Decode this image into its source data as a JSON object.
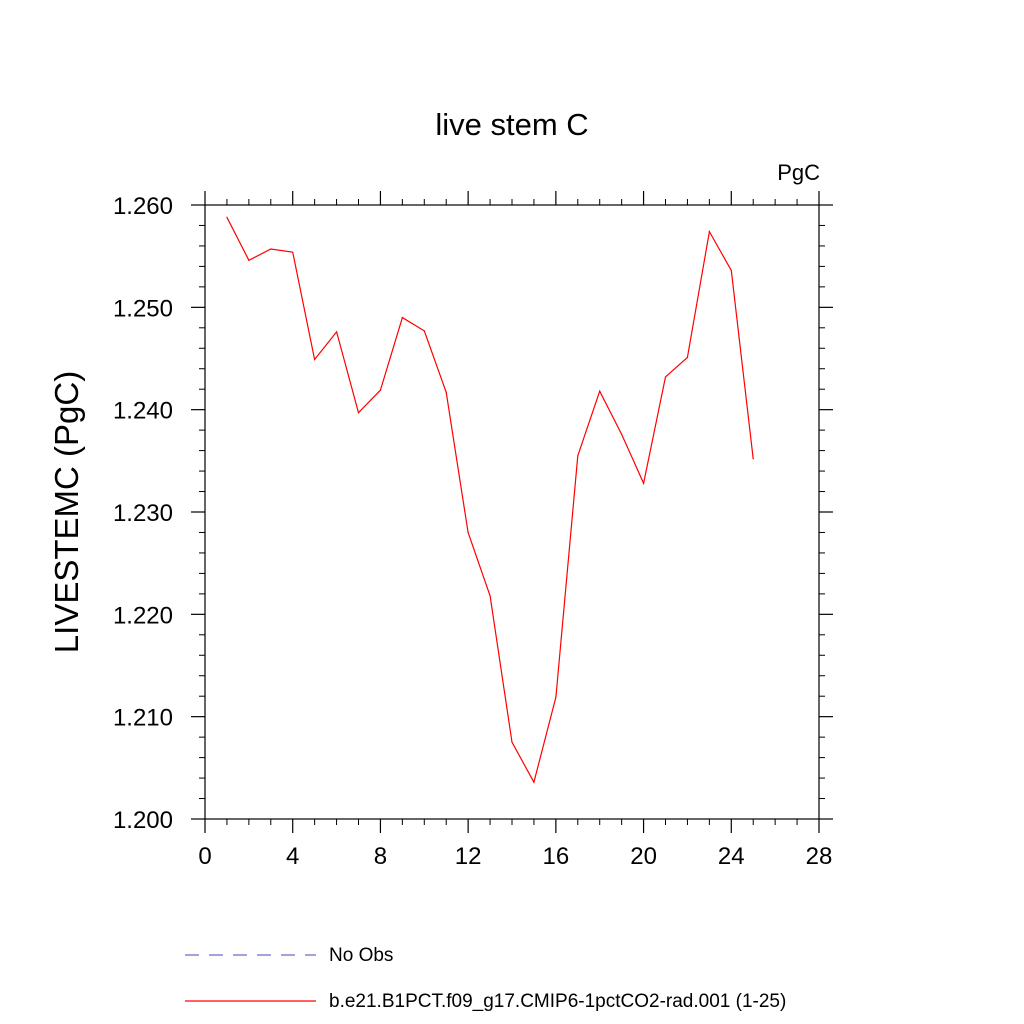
{
  "chart_data": {
    "type": "line",
    "title": "live stem C",
    "units_label": "PgC",
    "ylabel": "LIVESTEMC  (PgC)",
    "xlabel": "",
    "xlim": [
      0,
      28
    ],
    "ylim": [
      1.2,
      1.26
    ],
    "x_ticks": [
      0,
      4,
      8,
      12,
      16,
      20,
      24,
      28
    ],
    "x_tick_labels": [
      "0",
      "4",
      "8",
      "12",
      "16",
      "20",
      "24",
      "28"
    ],
    "y_ticks": [
      1.2,
      1.21,
      1.22,
      1.23,
      1.24,
      1.25,
      1.26
    ],
    "y_tick_labels": [
      "1.200",
      "1.210",
      "1.220",
      "1.230",
      "1.240",
      "1.250",
      "1.260"
    ],
    "grid": false,
    "legend_position": "bottom",
    "series": [
      {
        "name": "b.e21.B1PCT.f09_g17.CMIP6-1pctCO2-rad.001 (1-25)",
        "color": "#ff0000",
        "style": "solid",
        "x": [
          1,
          2,
          3,
          4,
          5,
          6,
          7,
          8,
          9,
          10,
          11,
          12,
          13,
          14,
          15,
          16,
          17,
          18,
          19,
          20,
          21,
          22,
          23,
          24,
          25
        ],
        "y": [
          1.2588,
          1.2546,
          1.2557,
          1.2554,
          1.2449,
          1.2476,
          1.2397,
          1.2419,
          1.249,
          1.2477,
          1.2417,
          1.228,
          1.2218,
          1.2075,
          1.2036,
          1.2119,
          1.2355,
          1.2418,
          1.2376,
          1.2328,
          1.2432,
          1.2451,
          1.2574,
          1.2536,
          1.2352
        ]
      },
      {
        "name": "No Obs",
        "color": "#6a6ac8",
        "style": "dashed",
        "x": [],
        "y": []
      }
    ]
  }
}
